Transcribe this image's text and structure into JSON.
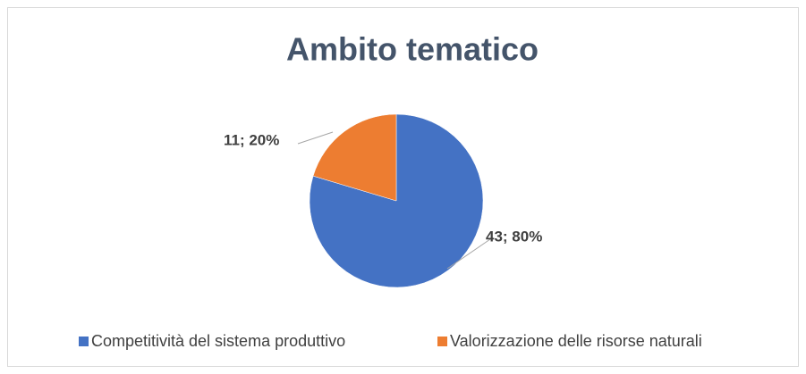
{
  "chart_data": {
    "type": "pie",
    "title": "Ambito tematico",
    "categories": [
      "Competitività del sistema produttivo",
      "Valorizzazione delle risorse naturali"
    ],
    "values": [
      43,
      11
    ],
    "value_labels": [
      "43; 80%",
      "11; 20%"
    ],
    "colors": [
      "#4472c4",
      "#ed7d31"
    ],
    "legend": "bottom"
  }
}
